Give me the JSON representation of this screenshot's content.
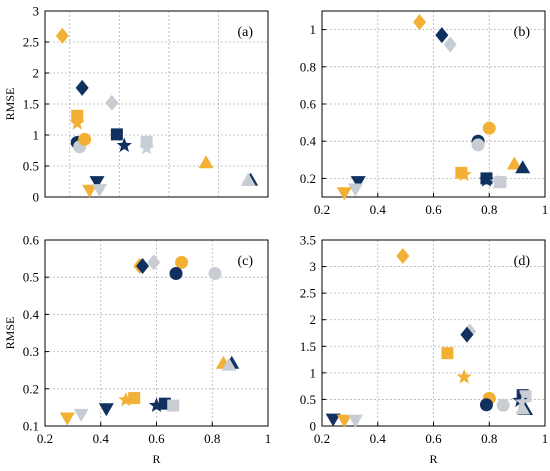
{
  "colors": {
    "dark": "#10305f",
    "gold": "#f2b134",
    "grey": "#c8cdd3"
  },
  "chart_data": [
    {
      "type": "scatter",
      "panel_label": "(a)",
      "xlabel": "",
      "ylabel": "RMSE",
      "xlim": [
        0.1,
        1.0
      ],
      "ylim": [
        0,
        3
      ],
      "xticks": [],
      "xtick_labels": [],
      "yticks": [
        0,
        0.5,
        1,
        1.5,
        2,
        2.5,
        3
      ],
      "ytick_labels": [
        "0",
        "0.5",
        "1",
        "1.5",
        "2",
        "2.5",
        "3"
      ],
      "grid": true,
      "points": [
        {
          "x": 0.17,
          "y": 2.6,
          "marker": "diamond",
          "color": "gold"
        },
        {
          "x": 0.25,
          "y": 1.76,
          "marker": "diamond",
          "color": "dark"
        },
        {
          "x": 0.37,
          "y": 1.52,
          "marker": "diamond",
          "color": "grey"
        },
        {
          "x": 0.23,
          "y": 1.31,
          "marker": "square",
          "color": "gold"
        },
        {
          "x": 0.23,
          "y": 1.19,
          "marker": "star",
          "color": "gold"
        },
        {
          "x": 0.39,
          "y": 1.01,
          "marker": "square",
          "color": "dark"
        },
        {
          "x": 0.51,
          "y": 0.89,
          "marker": "square",
          "color": "grey"
        },
        {
          "x": 0.51,
          "y": 0.79,
          "marker": "star",
          "color": "grey"
        },
        {
          "x": 0.42,
          "y": 0.83,
          "marker": "star",
          "color": "dark"
        },
        {
          "x": 0.23,
          "y": 0.88,
          "marker": "circle",
          "color": "dark"
        },
        {
          "x": 0.24,
          "y": 0.81,
          "marker": "circle",
          "color": "grey"
        },
        {
          "x": 0.26,
          "y": 0.93,
          "marker": "circle",
          "color": "gold"
        },
        {
          "x": 0.75,
          "y": 0.56,
          "marker": "triangle-up",
          "color": "gold"
        },
        {
          "x": 0.93,
          "y": 0.28,
          "marker": "triangle-up",
          "color": "dark"
        },
        {
          "x": 0.92,
          "y": 0.28,
          "marker": "triangle-up",
          "color": "grey"
        },
        {
          "x": 0.31,
          "y": 0.24,
          "marker": "triangle-down",
          "color": "dark"
        },
        {
          "x": 0.28,
          "y": 0.1,
          "marker": "triangle-down",
          "color": "gold"
        },
        {
          "x": 0.32,
          "y": 0.11,
          "marker": "triangle-down",
          "color": "grey"
        }
      ]
    },
    {
      "type": "scatter",
      "panel_label": "(b)",
      "xlabel": "",
      "ylabel": "",
      "xlim": [
        0.2,
        1.0
      ],
      "ylim": [
        0.1,
        1.1
      ],
      "xticks": [
        0.2,
        0.4,
        0.6,
        0.8,
        1
      ],
      "xtick_labels": [
        "0.2",
        "0.4",
        "0.6",
        "0.8",
        "1"
      ],
      "yticks": [
        0.2,
        0.4,
        0.6,
        0.8,
        1
      ],
      "ytick_labels": [
        "0.2",
        "0.4",
        "0.6",
        "0.8",
        "1"
      ],
      "grid": true,
      "points": [
        {
          "x": 0.55,
          "y": 1.04,
          "marker": "diamond",
          "color": "gold"
        },
        {
          "x": 0.63,
          "y": 0.97,
          "marker": "diamond",
          "color": "dark"
        },
        {
          "x": 0.66,
          "y": 0.92,
          "marker": "diamond",
          "color": "grey"
        },
        {
          "x": 0.8,
          "y": 0.47,
          "marker": "circle",
          "color": "gold"
        },
        {
          "x": 0.76,
          "y": 0.4,
          "marker": "circle",
          "color": "dark"
        },
        {
          "x": 0.76,
          "y": 0.38,
          "marker": "circle",
          "color": "grey"
        },
        {
          "x": 0.89,
          "y": 0.28,
          "marker": "triangle-up",
          "color": "gold"
        },
        {
          "x": 0.92,
          "y": 0.26,
          "marker": "triangle-up",
          "color": "dark"
        },
        {
          "x": 0.7,
          "y": 0.23,
          "marker": "square",
          "color": "gold"
        },
        {
          "x": 0.71,
          "y": 0.22,
          "marker": "star",
          "color": "gold"
        },
        {
          "x": 0.79,
          "y": 0.2,
          "marker": "square",
          "color": "dark"
        },
        {
          "x": 0.79,
          "y": 0.19,
          "marker": "star",
          "color": "dark"
        },
        {
          "x": 0.84,
          "y": 0.18,
          "marker": "square",
          "color": "grey"
        },
        {
          "x": 0.83,
          "y": 0.18,
          "marker": "star",
          "color": "grey"
        },
        {
          "x": 0.33,
          "y": 0.18,
          "marker": "triangle-down",
          "color": "dark"
        },
        {
          "x": 0.32,
          "y": 0.14,
          "marker": "triangle-down",
          "color": "grey"
        },
        {
          "x": 0.28,
          "y": 0.12,
          "marker": "triangle-down",
          "color": "gold"
        }
      ]
    },
    {
      "type": "scatter",
      "panel_label": "(c)",
      "xlabel": "R",
      "ylabel": "RMSE",
      "xlim": [
        0.2,
        1.0
      ],
      "ylim": [
        0.1,
        0.6
      ],
      "xticks": [
        0.2,
        0.4,
        0.6,
        0.8,
        1
      ],
      "xtick_labels": [
        "0.2",
        "0.4",
        "0.6",
        "0.8",
        "1"
      ],
      "yticks": [
        0.1,
        0.2,
        0.3,
        0.4,
        0.5,
        0.6
      ],
      "ytick_labels": [
        "0.1",
        "0.2",
        "0.3",
        "0.4",
        "0.5",
        "0.6"
      ],
      "grid": true,
      "points": [
        {
          "x": 0.54,
          "y": 0.53,
          "marker": "diamond",
          "color": "gold"
        },
        {
          "x": 0.55,
          "y": 0.53,
          "marker": "diamond",
          "color": "dark"
        },
        {
          "x": 0.59,
          "y": 0.54,
          "marker": "diamond",
          "color": "grey"
        },
        {
          "x": 0.69,
          "y": 0.54,
          "marker": "circle",
          "color": "gold"
        },
        {
          "x": 0.67,
          "y": 0.51,
          "marker": "circle",
          "color": "dark"
        },
        {
          "x": 0.81,
          "y": 0.51,
          "marker": "circle",
          "color": "grey"
        },
        {
          "x": 0.84,
          "y": 0.27,
          "marker": "triangle-up",
          "color": "gold"
        },
        {
          "x": 0.87,
          "y": 0.27,
          "marker": "triangle-up",
          "color": "dark"
        },
        {
          "x": 0.86,
          "y": 0.265,
          "marker": "triangle-up",
          "color": "grey"
        },
        {
          "x": 0.49,
          "y": 0.17,
          "marker": "star",
          "color": "gold"
        },
        {
          "x": 0.52,
          "y": 0.175,
          "marker": "square",
          "color": "gold"
        },
        {
          "x": 0.6,
          "y": 0.155,
          "marker": "star",
          "color": "dark"
        },
        {
          "x": 0.63,
          "y": 0.16,
          "marker": "square",
          "color": "dark"
        },
        {
          "x": 0.66,
          "y": 0.155,
          "marker": "square",
          "color": "grey"
        },
        {
          "x": 0.42,
          "y": 0.145,
          "marker": "triangle-down",
          "color": "dark"
        },
        {
          "x": 0.33,
          "y": 0.13,
          "marker": "triangle-down",
          "color": "grey"
        },
        {
          "x": 0.28,
          "y": 0.12,
          "marker": "triangle-down",
          "color": "gold"
        }
      ]
    },
    {
      "type": "scatter",
      "panel_label": "(d)",
      "xlabel": "R",
      "ylabel": "",
      "xlim": [
        0.2,
        1.0
      ],
      "ylim": [
        0,
        3.5
      ],
      "xticks": [
        0.2,
        0.4,
        0.6,
        0.8,
        1
      ],
      "xtick_labels": [
        "0.2",
        "0.4",
        "0.6",
        "0.8",
        "1"
      ],
      "yticks": [
        0,
        0.5,
        1,
        1.5,
        2,
        2.5,
        3,
        3.5
      ],
      "ytick_labels": [
        "0",
        "0.5",
        "1",
        "1.5",
        "2",
        "2.5",
        "3",
        "3.5"
      ],
      "grid": true,
      "points": [
        {
          "x": 0.49,
          "y": 3.2,
          "marker": "diamond",
          "color": "gold"
        },
        {
          "x": 0.73,
          "y": 1.78,
          "marker": "diamond",
          "color": "grey"
        },
        {
          "x": 0.72,
          "y": 1.72,
          "marker": "diamond",
          "color": "dark"
        },
        {
          "x": 0.65,
          "y": 1.37,
          "marker": "square",
          "color": "gold"
        },
        {
          "x": 0.71,
          "y": 0.92,
          "marker": "star",
          "color": "gold"
        },
        {
          "x": 0.92,
          "y": 0.58,
          "marker": "square",
          "color": "dark"
        },
        {
          "x": 0.93,
          "y": 0.56,
          "marker": "square",
          "color": "grey"
        },
        {
          "x": 0.91,
          "y": 0.48,
          "marker": "star",
          "color": "dark"
        },
        {
          "x": 0.92,
          "y": 0.45,
          "marker": "star",
          "color": "grey"
        },
        {
          "x": 0.8,
          "y": 0.52,
          "marker": "circle",
          "color": "gold"
        },
        {
          "x": 0.79,
          "y": 0.4,
          "marker": "circle",
          "color": "dark"
        },
        {
          "x": 0.85,
          "y": 0.39,
          "marker": "circle",
          "color": "grey"
        },
        {
          "x": 0.93,
          "y": 0.32,
          "marker": "triangle-up",
          "color": "dark"
        },
        {
          "x": 0.92,
          "y": 0.33,
          "marker": "triangle-up",
          "color": "grey"
        },
        {
          "x": 0.24,
          "y": 0.12,
          "marker": "triangle-down",
          "color": "dark"
        },
        {
          "x": 0.28,
          "y": 0.1,
          "marker": "triangle-down",
          "color": "gold"
        },
        {
          "x": 0.32,
          "y": 0.1,
          "marker": "triangle-down",
          "color": "grey"
        }
      ]
    }
  ]
}
